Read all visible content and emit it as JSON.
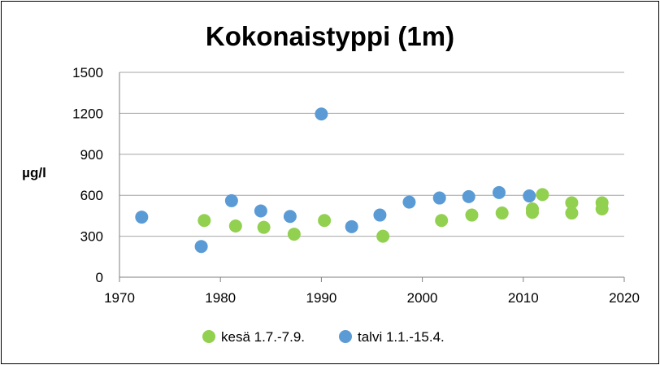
{
  "chart_data": {
    "type": "scatter",
    "title": "Kokonaistyppi (1m)",
    "xlabel": "",
    "ylabel": "µg/l",
    "xlim": [
      1970,
      2020
    ],
    "ylim": [
      0,
      1500
    ],
    "xticks": [
      1970,
      1980,
      1990,
      2000,
      2010,
      2020
    ],
    "yticks": [
      0,
      300,
      600,
      900,
      1200,
      1500
    ],
    "grid": "horizontal",
    "legend_position": "bottom",
    "series": [
      {
        "name": "kesä 1.7.-7.9.",
        "color": "#92d050",
        "points": [
          {
            "x": 1978.4,
            "y": 415
          },
          {
            "x": 1981.5,
            "y": 375
          },
          {
            "x": 1984.3,
            "y": 365
          },
          {
            "x": 1987.3,
            "y": 315
          },
          {
            "x": 1990.3,
            "y": 415
          },
          {
            "x": 1996.1,
            "y": 300
          },
          {
            "x": 2001.9,
            "y": 415
          },
          {
            "x": 2004.9,
            "y": 455
          },
          {
            "x": 2007.9,
            "y": 470
          },
          {
            "x": 2010.9,
            "y": 475
          },
          {
            "x": 2010.9,
            "y": 500
          },
          {
            "x": 2011.9,
            "y": 605
          },
          {
            "x": 2014.8,
            "y": 470
          },
          {
            "x": 2014.8,
            "y": 545
          },
          {
            "x": 2017.8,
            "y": 500
          },
          {
            "x": 2017.8,
            "y": 545
          }
        ]
      },
      {
        "name": "talvi 1.1.-15.4.",
        "color": "#5b9bd5",
        "points": [
          {
            "x": 1972.2,
            "y": 440
          },
          {
            "x": 1978.1,
            "y": 225
          },
          {
            "x": 1981.1,
            "y": 560
          },
          {
            "x": 1984.0,
            "y": 485
          },
          {
            "x": 1986.9,
            "y": 445
          },
          {
            "x": 1990.0,
            "y": 1195
          },
          {
            "x": 1993.0,
            "y": 370
          },
          {
            "x": 1995.8,
            "y": 455
          },
          {
            "x": 1998.7,
            "y": 550
          },
          {
            "x": 2001.7,
            "y": 580
          },
          {
            "x": 2004.6,
            "y": 590
          },
          {
            "x": 2007.6,
            "y": 620
          },
          {
            "x": 2010.6,
            "y": 595
          }
        ]
      }
    ]
  }
}
